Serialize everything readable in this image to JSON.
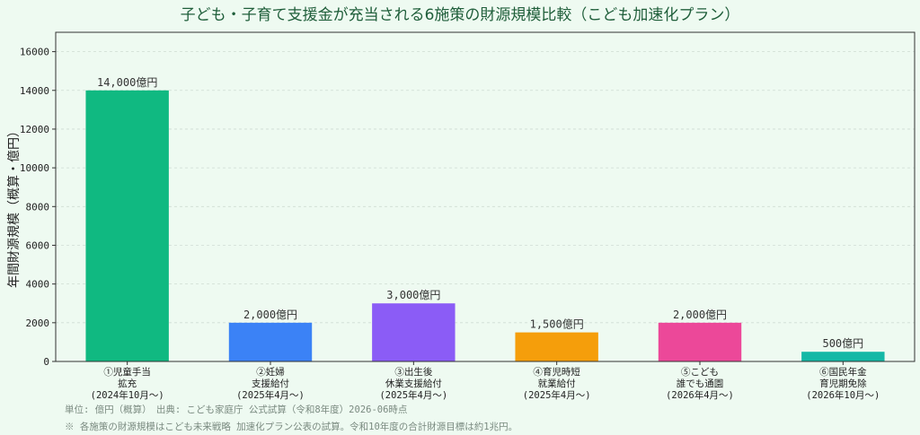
{
  "chart_data": {
    "type": "bar",
    "title": "子ども・子育て支援金が充当される6施策の財源規模比較（こども加速化プラン）",
    "ylabel": "年間財源規模（概算・億円）",
    "xlabel": "",
    "ylim": [
      0,
      17000
    ],
    "yticks": [
      0,
      2000,
      4000,
      6000,
      8000,
      10000,
      12000,
      14000,
      16000
    ],
    "grid": true,
    "categories": [
      [
        "①児童手当",
        "拡充",
        "(2024年10月～)"
      ],
      [
        "②妊婦",
        "支援給付",
        "(2025年4月～)"
      ],
      [
        "③出生後",
        "休業支援給付",
        "(2025年4月～)"
      ],
      [
        "④育児時短",
        "就業給付",
        "(2025年4月～)"
      ],
      [
        "⑤こども",
        "誰でも通園",
        "(2026年4月～)"
      ],
      [
        "⑥国民年金",
        "育児期免除",
        "(2026年10月～)"
      ]
    ],
    "values": [
      14000,
      2000,
      3000,
      1500,
      2000,
      500
    ],
    "data_labels": [
      "14,000億円",
      "2,000億円",
      "3,000億円",
      "1,500億円",
      "2,000億円",
      "500億円"
    ],
    "colors": [
      "#10b981",
      "#3b82f6",
      "#8b5cf6",
      "#f59e0b",
      "#ec4899",
      "#14b8a6"
    ]
  },
  "footer": {
    "source": "単位: 億円（概算）　出典: こども家庭庁 公式試算（令和8年度）2026-06時点",
    "note": "※ 各施策の財源規模はこども未来戦略 加速化プラン公表の試算。令和10年度の合計財源目標は約1兆円。"
  }
}
